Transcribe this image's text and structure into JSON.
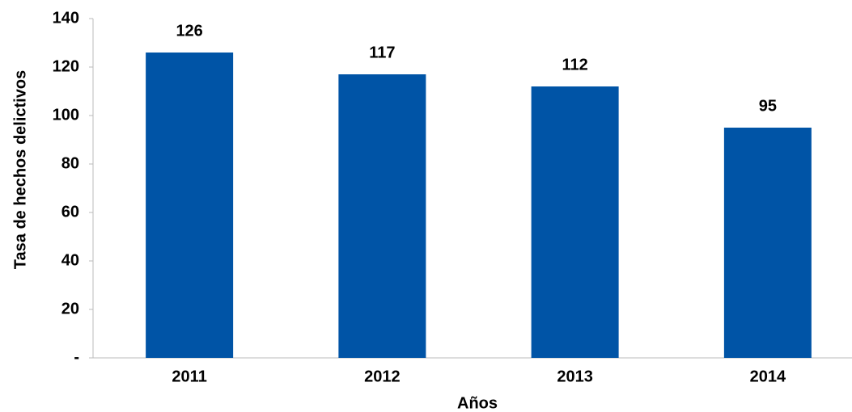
{
  "chart_data": {
    "type": "bar",
    "x_label": "Años",
    "y_label": "Tasa de hechos delictivos",
    "categories": [
      "2011",
      "2012",
      "2013",
      "2014"
    ],
    "values": [
      126,
      117,
      112,
      95
    ],
    "color": "#0054a6",
    "ylim": [
      0,
      140
    ],
    "yticks": [
      {
        "value": 0,
        "label": "-"
      },
      20,
      40,
      60,
      80,
      100,
      120,
      140
    ],
    "grid": false
  }
}
